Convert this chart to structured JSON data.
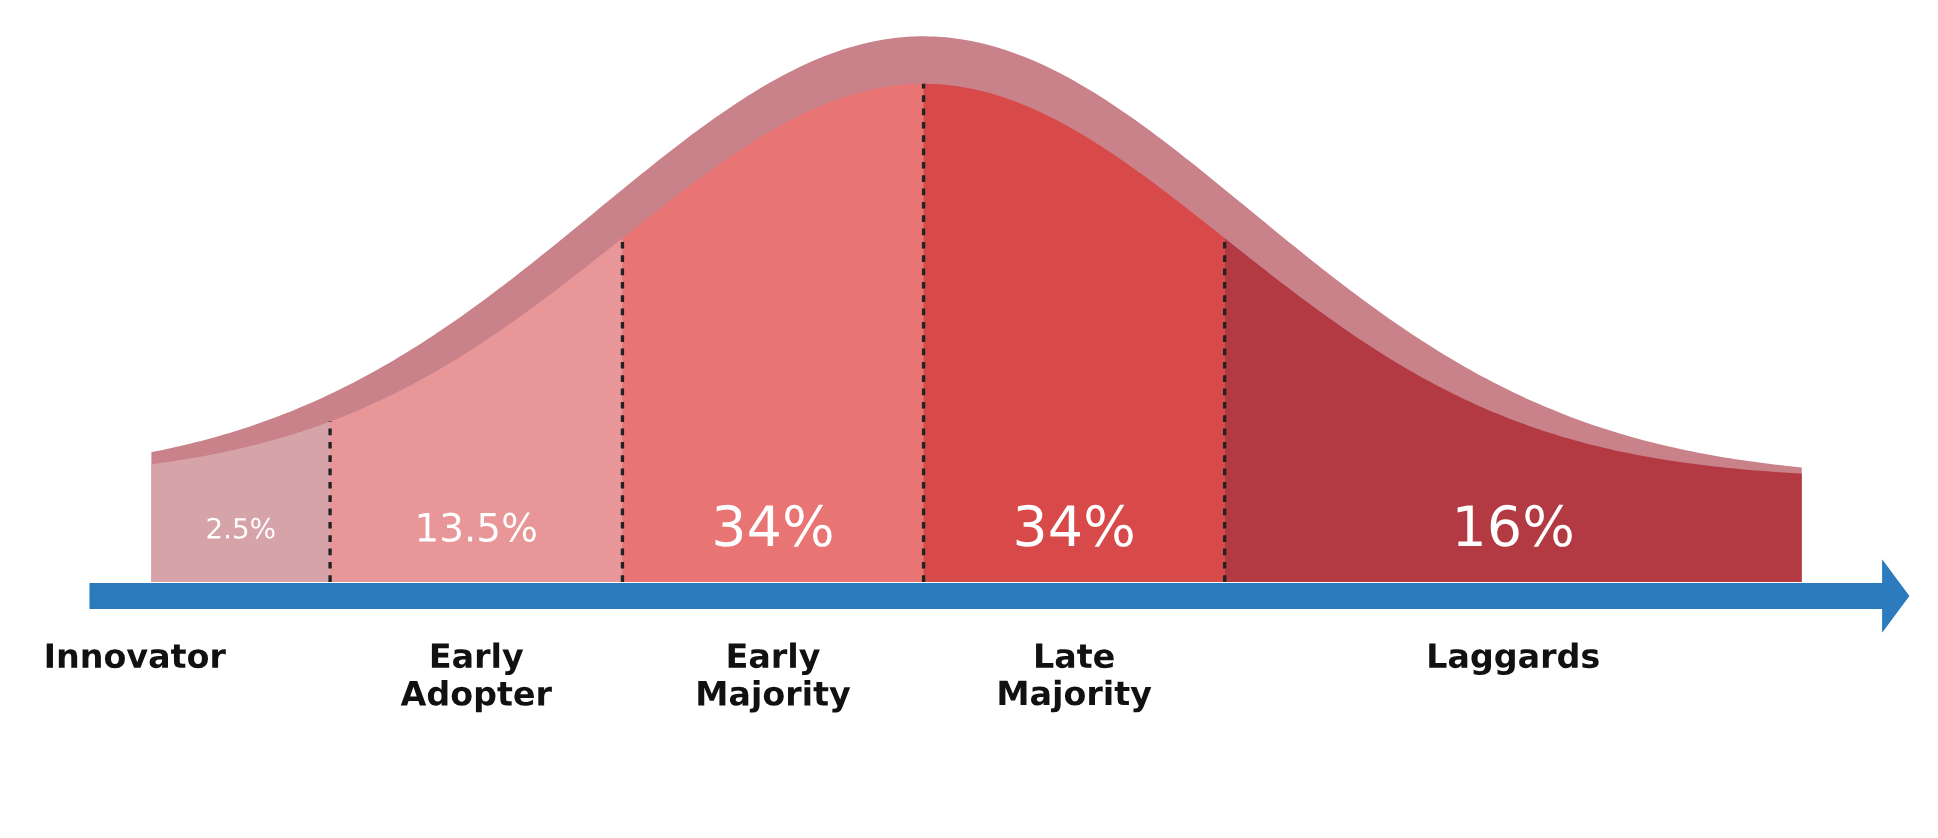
{
  "chart_data": {
    "type": "other",
    "categories": [
      "Innovator",
      "Early\nAdopter",
      "Early\nMajority",
      "Late\nMajority",
      "Laggards"
    ],
    "values": [
      2.5,
      13.5,
      34,
      34,
      16
    ],
    "value_labels": [
      "2.5%",
      "13.5%",
      "34%",
      "34%",
      "16%"
    ],
    "colors": [
      "#d6a4a8",
      "#e99699",
      "#e97474",
      "#d84a4a",
      "#b33a42"
    ]
  }
}
